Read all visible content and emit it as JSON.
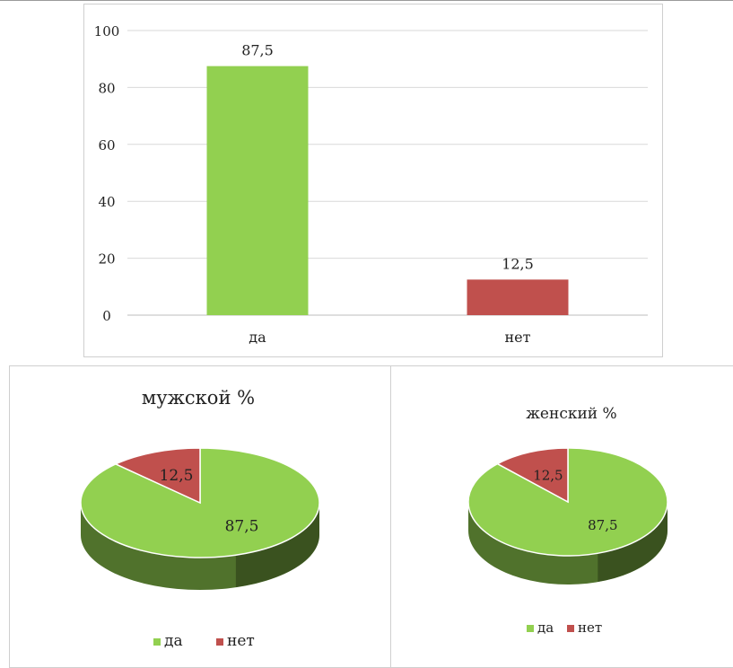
{
  "chart_data": [
    {
      "type": "bar",
      "categories": [
        "да",
        "нет"
      ],
      "values": [
        87.5,
        12.5
      ],
      "data_labels": [
        "87,5",
        "12,5"
      ],
      "ylim": [
        0,
        100
      ],
      "yticks": [
        0,
        20,
        40,
        60,
        80,
        100
      ],
      "colors": [
        "#92d050",
        "#c0504d"
      ],
      "grid": true
    },
    {
      "type": "pie",
      "title": "мужской %",
      "labels": [
        "да",
        "нет"
      ],
      "values": [
        87.5,
        12.5
      ],
      "data_labels": [
        "87,5",
        "12,5"
      ],
      "colors": [
        "#92d050",
        "#c0504d"
      ],
      "legend_position": "bottom",
      "style": "3d"
    },
    {
      "type": "pie",
      "title": "женский %",
      "labels": [
        "да",
        "нет"
      ],
      "values": [
        87.5,
        12.5
      ],
      "data_labels": [
        "87,5",
        "12,5"
      ],
      "colors": [
        "#92d050",
        "#c0504d"
      ],
      "legend_position": "bottom",
      "style": "3d"
    }
  ]
}
